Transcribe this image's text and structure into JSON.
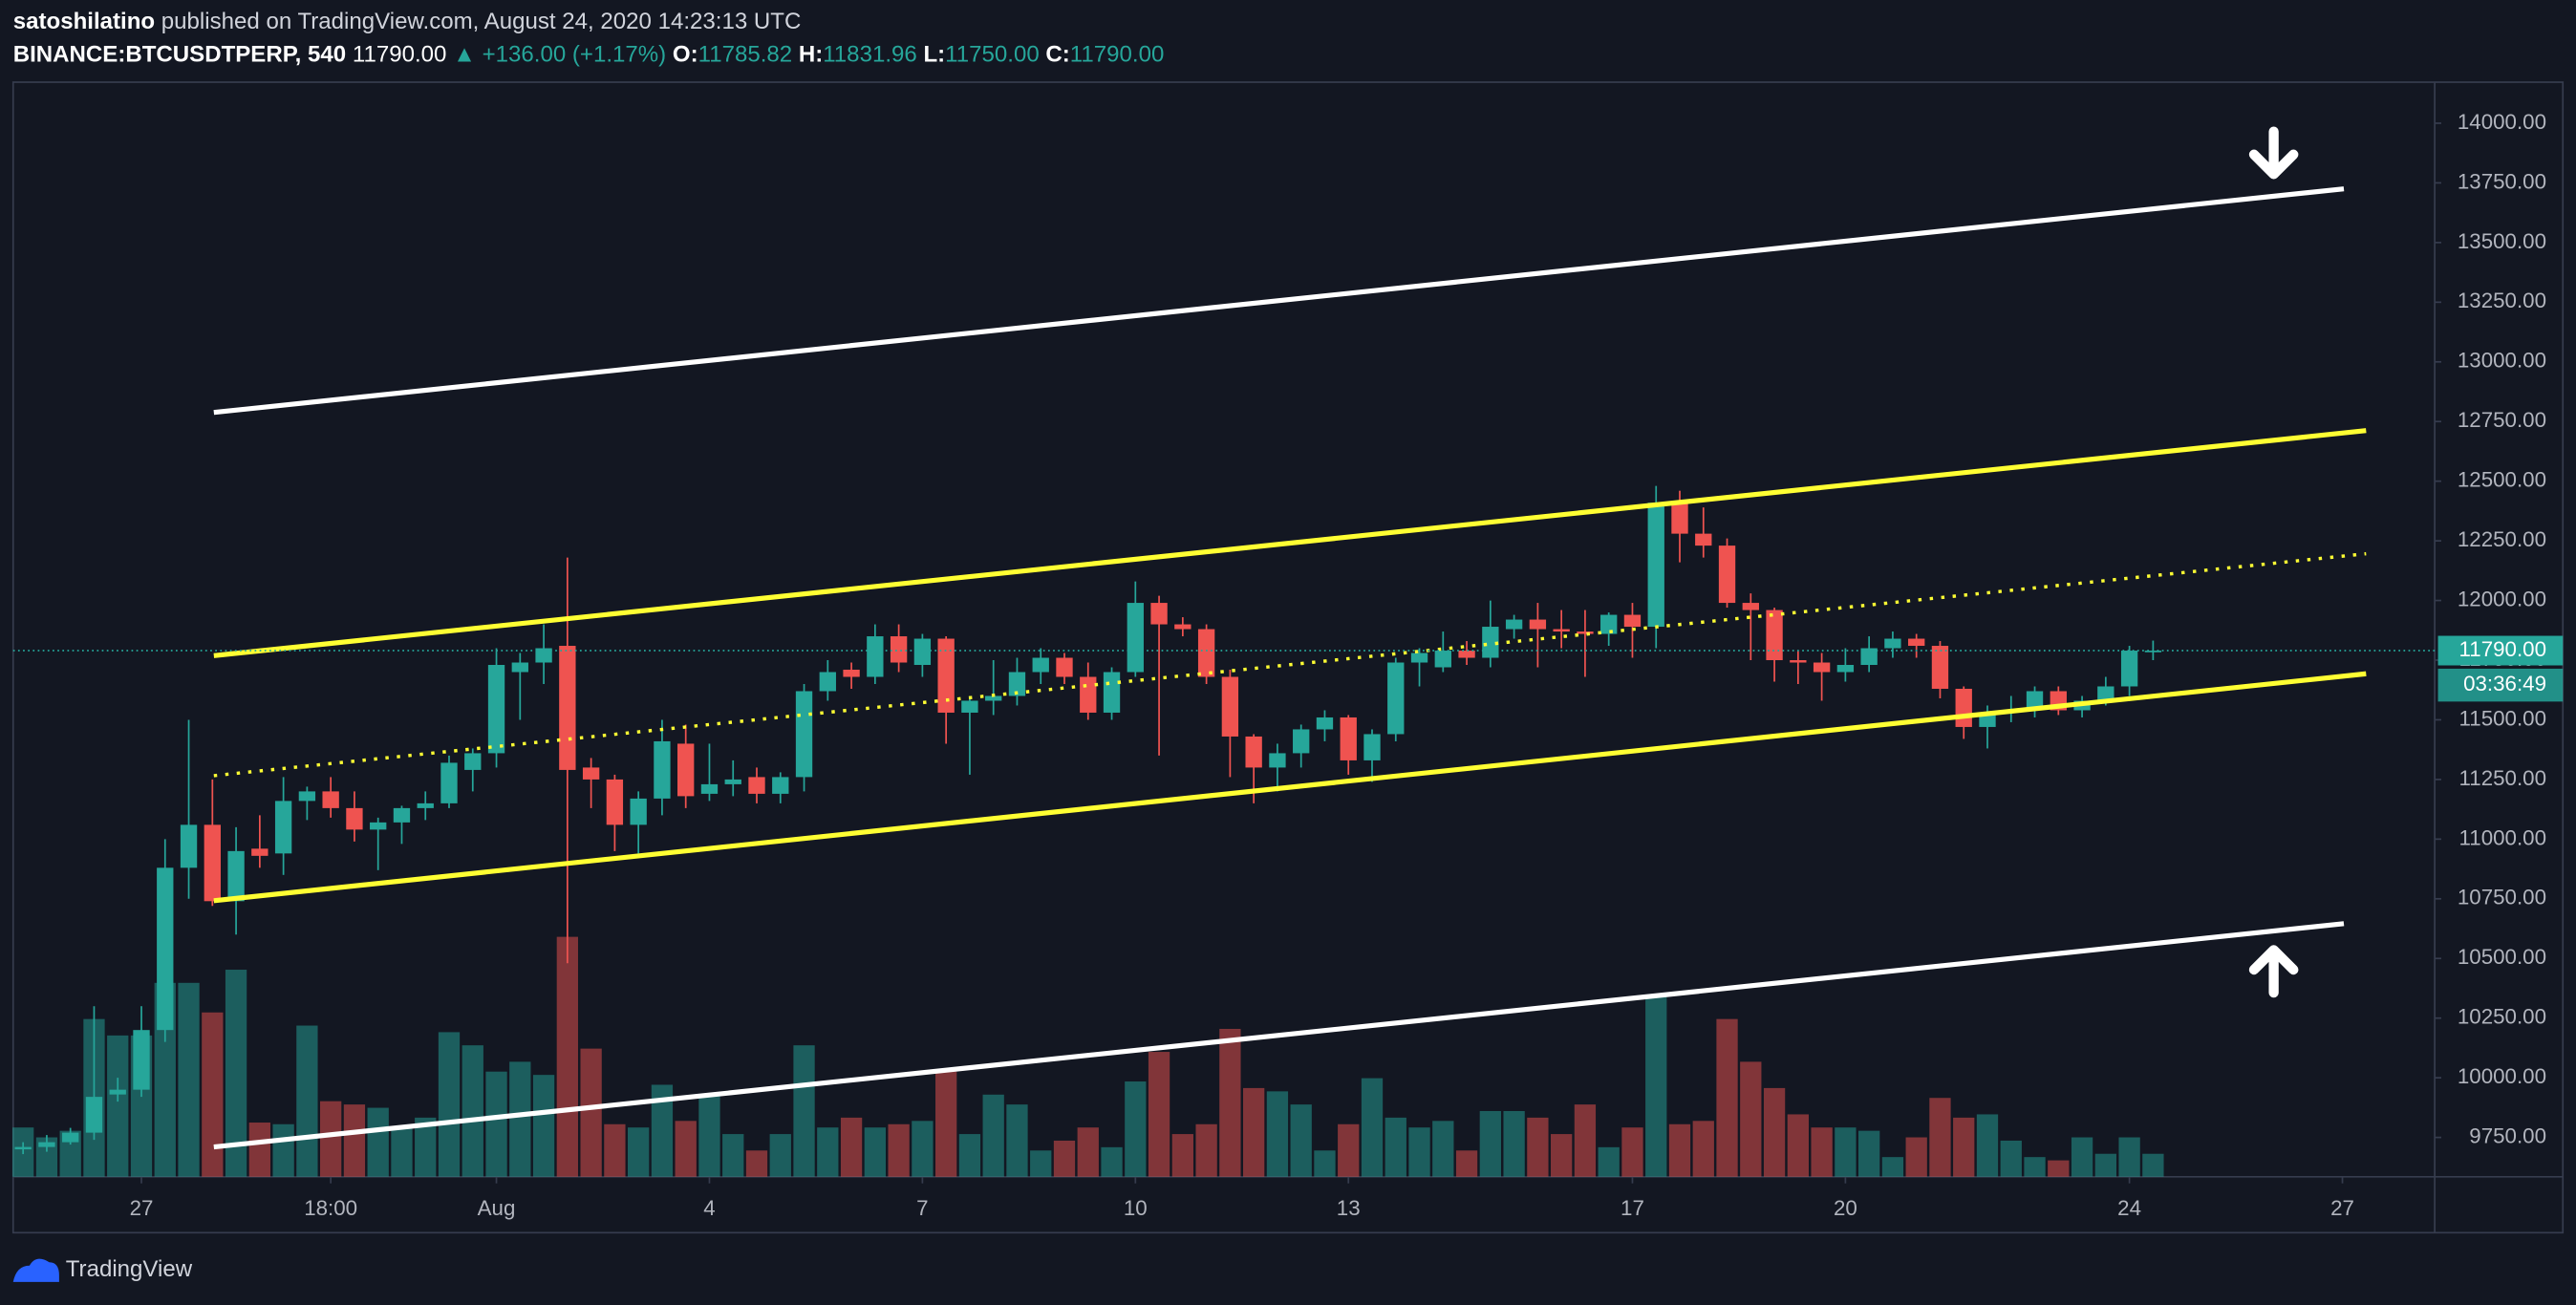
{
  "header": {
    "publisher": "satoshilatino",
    "published": "published on TradingView.com, August 24, 2020 14:23:13 UTC",
    "symbol": "BINANCE:BTCUSDTPERP, 540",
    "last": "11790.00",
    "change": "▲ +136.00 (+1.17%)",
    "o_label": "O:",
    "o": "11785.82",
    "h_label": "H:",
    "h": "11831.96",
    "l_label": "L:",
    "l": "11750.00",
    "c_label": "C:",
    "c": "11790.00"
  },
  "chart_data": {
    "type": "candlestick",
    "up_color": "#26a69a",
    "down_color": "#ef5350",
    "open": [
      9700,
      9710,
      9730,
      9770,
      9930,
      9950,
      10200,
      10880,
      11060,
      10740,
      10960,
      10940,
      11160,
      11200,
      11130,
      11040,
      11070,
      11130,
      11150,
      11290,
      11360,
      11700,
      11740,
      11810,
      11300,
      11250,
      11060,
      11170,
      11400,
      11190,
      11230,
      11260,
      11190,
      11260,
      11620,
      11710,
      11680,
      11850,
      11730,
      11840,
      11530,
      11580,
      11600,
      11700,
      11760,
      11680,
      11530,
      11700,
      11990,
      11900,
      11880,
      11680,
      11430,
      11300,
      11360,
      11460,
      11510,
      11330,
      11440,
      11740,
      11720,
      11790,
      11760,
      11880,
      11920,
      11880,
      11870,
      11860,
      11940,
      11890,
      12410,
      12280,
      12230,
      11990,
      11960,
      11750,
      11740,
      11700,
      11730,
      11800,
      11840,
      11810,
      11630,
      11470,
      11530,
      11540,
      11620,
      11540,
      11580,
      11640,
      11785.82
    ],
    "high": [
      9730,
      9760,
      9790,
      10300,
      10000,
      10300,
      11000,
      11500,
      11250,
      11050,
      11100,
      11260,
      11220,
      11260,
      11200,
      11090,
      11140,
      11200,
      11350,
      11380,
      11800,
      11780,
      11900,
      12180,
      11340,
      11270,
      11200,
      11500,
      11480,
      11400,
      11330,
      11300,
      11280,
      11650,
      11750,
      11740,
      11900,
      11900,
      11860,
      11850,
      11600,
      11750,
      11760,
      11800,
      11780,
      11740,
      11720,
      12080,
      12020,
      11930,
      11900,
      11710,
      11440,
      11400,
      11480,
      11540,
      11520,
      11460,
      11760,
      11800,
      11870,
      11830,
      12000,
      11940,
      11990,
      11960,
      11960,
      11950,
      11990,
      12480,
      12460,
      12390,
      12260,
      12030,
      11970,
      11790,
      11780,
      11800,
      11850,
      11870,
      11860,
      11830,
      11640,
      11560,
      11600,
      11640,
      11640,
      11600,
      11680,
      11810,
      11831.96
    ],
    "low": [
      9680,
      9690,
      9720,
      9740,
      9900,
      9920,
      10150,
      10750,
      10720,
      10600,
      10880,
      10850,
      11080,
      11090,
      10990,
      10870,
      10980,
      11080,
      11130,
      11200,
      11300,
      11500,
      11650,
      10480,
      11130,
      10950,
      10940,
      11100,
      11130,
      11160,
      11180,
      11150,
      11150,
      11200,
      11580,
      11630,
      11650,
      11700,
      11680,
      11400,
      11270,
      11520,
      11560,
      11650,
      11650,
      11500,
      11500,
      11680,
      11350,
      11850,
      11650,
      11260,
      11150,
      11200,
      11300,
      11410,
      11270,
      11240,
      11410,
      11640,
      11700,
      11730,
      11720,
      11840,
      11720,
      11800,
      11680,
      11810,
      11760,
      11800,
      12160,
      12180,
      11970,
      11750,
      11660,
      11650,
      11580,
      11660,
      11700,
      11760,
      11760,
      11590,
      11420,
      11380,
      11490,
      11510,
      11520,
      11510,
      11560,
      11600,
      11750
    ],
    "close": [
      9710,
      9730,
      9770,
      9920,
      9950,
      10200,
      10880,
      11060,
      10740,
      10950,
      10930,
      11160,
      11200,
      11130,
      11040,
      11070,
      11130,
      11150,
      11320,
      11360,
      11730,
      11740,
      11800,
      11290,
      11250,
      11060,
      11170,
      11410,
      11180,
      11230,
      11250,
      11190,
      11260,
      11620,
      11700,
      11680,
      11850,
      11740,
      11840,
      11530,
      11580,
      11600,
      11700,
      11760,
      11680,
      11530,
      11700,
      11990,
      11900,
      11880,
      11680,
      11430,
      11300,
      11360,
      11460,
      11510,
      11330,
      11440,
      11740,
      11780,
      11790,
      11760,
      11890,
      11920,
      11880,
      11870,
      11860,
      11940,
      11890,
      12410,
      12280,
      12230,
      11990,
      11960,
      11750,
      11740,
      11700,
      11730,
      11800,
      11840,
      11810,
      11630,
      11470,
      11530,
      11540,
      11620,
      11540,
      11580,
      11640,
      11790,
      11790
    ],
    "volume": [
      30,
      24,
      28,
      96,
      86,
      86,
      118,
      118,
      100,
      126,
      33,
      32,
      92,
      46,
      44,
      42,
      30,
      36,
      88,
      80,
      64,
      70,
      62,
      146,
      78,
      32,
      30,
      56,
      34,
      50,
      26,
      16,
      26,
      80,
      30,
      36,
      30,
      32,
      34,
      64,
      26,
      50,
      44,
      16,
      22,
      30,
      18,
      58,
      76,
      26,
      32,
      90,
      54,
      52,
      44,
      16,
      32,
      60,
      36,
      30,
      34,
      16,
      40,
      40,
      36,
      26,
      44,
      18,
      30,
      110,
      32,
      34,
      96,
      70,
      54,
      38,
      30,
      30,
      28,
      12,
      24,
      48,
      36,
      38,
      22,
      12,
      10,
      24,
      14,
      24,
      14
    ],
    "volume_lim": [
      0,
      150
    ],
    "ylim": [
      9585,
      14172
    ],
    "yticks": [
      {
        "value": 9750,
        "label": "9750.00"
      },
      {
        "value": 10000,
        "label": "10000.00"
      },
      {
        "value": 10250,
        "label": "10250.00"
      },
      {
        "value": 10500,
        "label": "10500.00"
      },
      {
        "value": 10750,
        "label": "10750.00"
      },
      {
        "value": 11000,
        "label": "11000.00"
      },
      {
        "value": 11250,
        "label": "11250.00"
      },
      {
        "value": 11500,
        "label": "11500.00"
      },
      {
        "value": 11750,
        "label": "11750.00"
      },
      {
        "value": 12000,
        "label": "12000.00"
      },
      {
        "value": 12250,
        "label": "12250.00"
      },
      {
        "value": 12500,
        "label": "12500.00"
      },
      {
        "value": 12750,
        "label": "12750.00"
      },
      {
        "value": 13000,
        "label": "13000.00"
      },
      {
        "value": 13250,
        "label": "13250.00"
      },
      {
        "value": 13500,
        "label": "13500.00"
      },
      {
        "value": 13750,
        "label": "13750.00"
      },
      {
        "value": 14000,
        "label": "14000.00"
      }
    ],
    "xlim": [
      -0.42,
      101.9
    ],
    "xticks": [
      {
        "value": 5,
        "label": "27"
      },
      {
        "value": 13,
        "label": "18:00"
      },
      {
        "value": 20,
        "label": "Aug"
      },
      {
        "value": 29,
        "label": "4"
      },
      {
        "value": 38,
        "label": "7"
      },
      {
        "value": 47,
        "label": "10"
      },
      {
        "value": 56,
        "label": "13"
      },
      {
        "value": 68,
        "label": "17"
      },
      {
        "value": 77,
        "label": "20"
      },
      {
        "value": 89,
        "label": "24"
      },
      {
        "value": 98,
        "label": "27"
      }
    ],
    "trend_lines": [
      {
        "color": "#ffffff",
        "style": "solid",
        "x": [
          8.06,
          98.06
        ],
        "y": [
          12788,
          13725
        ]
      },
      {
        "color": "#ffff33",
        "style": "solid",
        "x": [
          8.06,
          99.0
        ],
        "y": [
          11769,
          12712
        ]
      },
      {
        "color": "#ffff33",
        "style": "dotted",
        "x": [
          8.06,
          99.0
        ],
        "y": [
          11266,
          12196
        ]
      },
      {
        "color": "#ffff33",
        "style": "solid",
        "x": [
          8.06,
          99.0
        ],
        "y": [
          10742,
          11693
        ]
      },
      {
        "color": "#ffffff",
        "style": "solid",
        "x": [
          8.06,
          98.06
        ],
        "y": [
          9710,
          10646
        ]
      }
    ],
    "price_tag": "11790.00",
    "countdown": "03:36:49"
  },
  "footer": {
    "brand": "TradingView"
  }
}
